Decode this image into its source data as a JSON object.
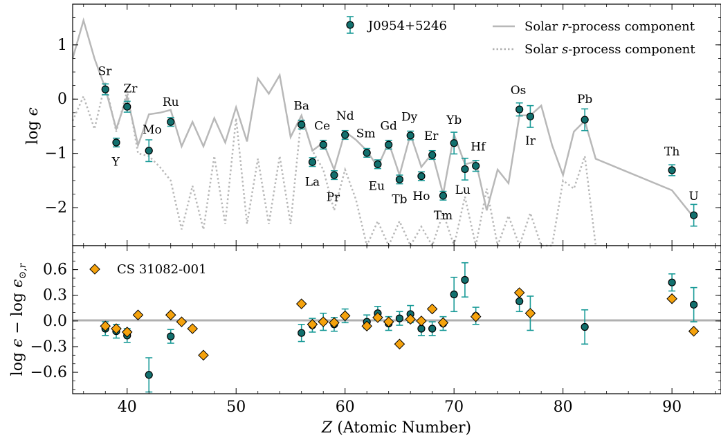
{
  "chart_data": [
    {
      "type": "scatter",
      "panel": "top",
      "ylabel": "log ε",
      "xlim": [
        35,
        94.5
      ],
      "ylim": [
        -2.7,
        1.75
      ],
      "yticks": [
        -2,
        -1,
        0,
        1
      ],
      "ytick_labels": [
        "−2",
        "−1",
        "0",
        "1"
      ],
      "legend": {
        "star": "J0954+5246",
        "r_line": "Solar r-process component",
        "s_line": "Solar s-process component"
      },
      "series": [
        {
          "name": "J0954+5246",
          "points": [
            {
              "el": "Sr",
              "z": 38,
              "y": 0.18,
              "err": 0.1
            },
            {
              "el": "Y",
              "z": 39,
              "y": -0.8,
              "err": 0.08
            },
            {
              "el": "Zr",
              "z": 40,
              "y": -0.14,
              "err": 0.1
            },
            {
              "el": "Mo",
              "z": 42,
              "y": -0.95,
              "err": 0.2
            },
            {
              "el": "Ru",
              "z": 44,
              "y": -0.42,
              "err": 0.08
            },
            {
              "el": "Ba",
              "z": 56,
              "y": -0.47,
              "err": 0.08
            },
            {
              "el": "La",
              "z": 57,
              "y": -1.16,
              "err": 0.08
            },
            {
              "el": "Ce",
              "z": 58,
              "y": -0.84,
              "err": 0.08
            },
            {
              "el": "Pr",
              "z": 59,
              "y": -1.4,
              "err": 0.08
            },
            {
              "el": "Nd",
              "z": 60,
              "y": -0.66,
              "err": 0.08
            },
            {
              "el": "Sm",
              "z": 62,
              "y": -0.99,
              "err": 0.08
            },
            {
              "el": "Eu",
              "z": 63,
              "y": -1.2,
              "err": 0.08
            },
            {
              "el": "Gd",
              "z": 64,
              "y": -0.84,
              "err": 0.08
            },
            {
              "el": "Tb",
              "z": 65,
              "y": -1.48,
              "err": 0.08
            },
            {
              "el": "Dy",
              "z": 66,
              "y": -0.67,
              "err": 0.08
            },
            {
              "el": "Ho",
              "z": 67,
              "y": -1.42,
              "err": 0.08
            },
            {
              "el": "Er",
              "z": 68,
              "y": -1.03,
              "err": 0.08
            },
            {
              "el": "Tm",
              "z": 69,
              "y": -1.78,
              "err": 0.08
            },
            {
              "el": "Yb",
              "z": 70,
              "y": -0.81,
              "err": 0.2
            },
            {
              "el": "Lu",
              "z": 71,
              "y": -1.29,
              "err": 0.2
            },
            {
              "el": "Hf",
              "z": 72,
              "y": -1.23,
              "err": 0.1
            },
            {
              "el": "Os",
              "z": 76,
              "y": -0.19,
              "err": 0.12
            },
            {
              "el": "Ir",
              "z": 77,
              "y": -0.32,
              "err": 0.2
            },
            {
              "el": "Pb",
              "z": 82,
              "y": -0.38,
              "err": 0.2
            },
            {
              "el": "Th",
              "z": 90,
              "y": -1.31,
              "err": 0.1
            },
            {
              "el": "U",
              "z": 92,
              "y": -2.14,
              "err": 0.2
            }
          ]
        },
        {
          "name": "Solar r-process component",
          "x": [
            35,
            36,
            37,
            38,
            39,
            40,
            41,
            42,
            43,
            44,
            45,
            46,
            47,
            48,
            49,
            50,
            51,
            52,
            53,
            54,
            55,
            56,
            57,
            58,
            59,
            60,
            61,
            62,
            63,
            64,
            65,
            66,
            67,
            68,
            69,
            70,
            71,
            72,
            73,
            74,
            75,
            76,
            77,
            78,
            79,
            80,
            81,
            82,
            83,
            90,
            92
          ],
          "y": [
            0.75,
            1.45,
            0.75,
            0.2,
            -0.55,
            0.05,
            -0.85,
            -0.28,
            -0.25,
            -0.2,
            -0.87,
            -0.42,
            -0.87,
            -0.35,
            -0.8,
            -0.15,
            -0.78,
            0.38,
            0.1,
            0.44,
            -0.7,
            -0.3,
            -0.95,
            -0.8,
            -1.3,
            -0.6,
            -0.75,
            -0.95,
            -1.25,
            -0.8,
            -1.4,
            -0.65,
            -1.25,
            -1.0,
            -1.75,
            -0.65,
            -1.2,
            -1.15,
            -2.05,
            -1.3,
            -1.55,
            -0.3,
            -0.3,
            -0.12,
            -0.85,
            -1.4,
            -0.6,
            -0.4,
            -1.1,
            -1.68,
            -2.18
          ]
        },
        {
          "name": "Solar s-process component",
          "x": [
            35,
            36,
            37,
            38,
            39,
            40,
            41,
            42,
            43,
            44,
            45,
            46,
            47,
            48,
            49,
            50,
            51,
            52,
            53,
            54,
            55,
            56,
            57,
            58,
            59,
            60,
            61,
            62,
            63,
            64,
            65,
            66,
            67,
            68,
            69,
            70,
            71,
            72,
            73,
            74,
            75,
            76,
            77,
            78,
            79,
            80,
            81,
            82,
            83
          ],
          "y": [
            -0.4,
            0.05,
            -0.55,
            0.3,
            -0.6,
            0.15,
            -1.0,
            -1.05,
            -1.25,
            -1.5,
            -2.4,
            -1.6,
            -2.4,
            -1.05,
            -2.3,
            -0.35,
            -2.3,
            -1.1,
            -2.3,
            -1.05,
            -2.3,
            -0.3,
            -0.95,
            -1.3,
            -2.05,
            -1.3,
            -1.85,
            -2.7,
            -2.25,
            -2.7,
            -2.25,
            -2.7,
            -2.35,
            -2.7,
            -2.1,
            -2.7,
            -1.8,
            -2.7,
            -1.65,
            -2.7,
            -2.15,
            -2.7,
            -2.1,
            -2.7,
            -2.7,
            -1.5,
            -1.65,
            -1.05,
            -2.7
          ]
        }
      ],
      "labels": [
        {
          "text": "Sr",
          "x": 37.95,
          "y": 0.52
        },
        {
          "text": "Y",
          "x": 38.95,
          "y": -1.15
        },
        {
          "text": "Zr",
          "x": 40.3,
          "y": 0.2
        },
        {
          "text": "Mo",
          "x": 42.3,
          "y": -0.56
        },
        {
          "text": "Ru",
          "x": 44.0,
          "y": -0.05
        },
        {
          "text": "Ba",
          "x": 56.0,
          "y": -0.12
        },
        {
          "text": "La",
          "x": 57.0,
          "y": -1.52
        },
        {
          "text": "Ce",
          "x": 57.9,
          "y": -0.49
        },
        {
          "text": "Pr",
          "x": 58.9,
          "y": -1.8
        },
        {
          "text": "Nd",
          "x": 60.0,
          "y": -0.3
        },
        {
          "text": "Sm",
          "x": 61.9,
          "y": -0.63
        },
        {
          "text": "Eu",
          "x": 62.9,
          "y": -1.6
        },
        {
          "text": "Gd",
          "x": 64.0,
          "y": -0.49
        },
        {
          "text": "Tb",
          "x": 65.0,
          "y": -1.84
        },
        {
          "text": "Dy",
          "x": 65.9,
          "y": -0.32
        },
        {
          "text": "Ho",
          "x": 67.0,
          "y": -1.78
        },
        {
          "text": "Er",
          "x": 67.9,
          "y": -0.67
        },
        {
          "text": "Tm",
          "x": 69.0,
          "y": -2.14
        },
        {
          "text": "Yb",
          "x": 70.0,
          "y": -0.38
        },
        {
          "text": "Lu",
          "x": 70.8,
          "y": -1.67
        },
        {
          "text": "Hf",
          "x": 72.2,
          "y": -0.87
        },
        {
          "text": "Os",
          "x": 75.9,
          "y": 0.17
        },
        {
          "text": "Ir",
          "x": 77.0,
          "y": -0.76
        },
        {
          "text": "Pb",
          "x": 82.0,
          "y": 0.0
        },
        {
          "text": "Th",
          "x": 90.0,
          "y": -0.96
        },
        {
          "text": "U",
          "x": 92.0,
          "y": -1.78
        }
      ]
    },
    {
      "type": "scatter",
      "panel": "bottom",
      "ylabel": "log ε − log ε⊙,r",
      "xlabel": "Z (Atomic Number)",
      "xlim": [
        35,
        94.5
      ],
      "ylim": [
        -0.85,
        0.88
      ],
      "yticks": [
        -0.6,
        -0.3,
        0.0,
        0.3,
        0.6
      ],
      "ytick_labels": [
        "−0.6",
        "−0.3",
        "0.0",
        "0.3",
        "0.6"
      ],
      "xticks": [
        40,
        50,
        60,
        70,
        80,
        90
      ],
      "legend": {
        "comparison": "CS 31082-001"
      },
      "series": [
        {
          "name": "J0954+5246",
          "points": [
            {
              "z": 38,
              "y": -0.09,
              "err": 0.08
            },
            {
              "z": 39,
              "y": -0.12,
              "err": 0.08
            },
            {
              "z": 40,
              "y": -0.17,
              "err": 0.08
            },
            {
              "z": 42,
              "y": -0.63,
              "err": 0.2
            },
            {
              "z": 44,
              "y": -0.18,
              "err": 0.08
            },
            {
              "z": 56,
              "y": -0.14,
              "err": 0.1
            },
            {
              "z": 57,
              "y": -0.05,
              "err": 0.08
            },
            {
              "z": 58,
              "y": -0.01,
              "err": 0.1
            },
            {
              "z": 59,
              "y": -0.04,
              "err": 0.08
            },
            {
              "z": 60,
              "y": 0.06,
              "err": 0.08
            },
            {
              "z": 62,
              "y": -0.01,
              "err": 0.08
            },
            {
              "z": 63,
              "y": 0.09,
              "err": 0.08
            },
            {
              "z": 64,
              "y": -0.03,
              "err": 0.08
            },
            {
              "z": 65,
              "y": 0.03,
              "err": 0.08
            },
            {
              "z": 66,
              "y": 0.08,
              "err": 0.1
            },
            {
              "z": 67,
              "y": -0.09,
              "err": 0.08
            },
            {
              "z": 68,
              "y": -0.09,
              "err": 0.08
            },
            {
              "z": 69,
              "y": -0.03,
              "err": 0.08
            },
            {
              "z": 70,
              "y": 0.31,
              "err": 0.2
            },
            {
              "z": 71,
              "y": 0.48,
              "err": 0.2
            },
            {
              "z": 72,
              "y": 0.06,
              "err": 0.1
            },
            {
              "z": 76,
              "y": 0.23,
              "err": 0.12
            },
            {
              "z": 77,
              "y": 0.09,
              "err": 0.2
            },
            {
              "z": 82,
              "y": -0.07,
              "err": 0.2
            },
            {
              "z": 90,
              "y": 0.45,
              "err": 0.1
            },
            {
              "z": 92,
              "y": 0.19,
              "err": 0.2
            }
          ]
        },
        {
          "name": "CS 31082-001",
          "points": [
            {
              "z": 38,
              "y": -0.06
            },
            {
              "z": 39,
              "y": -0.09
            },
            {
              "z": 40,
              "y": -0.13
            },
            {
              "z": 41,
              "y": 0.07
            },
            {
              "z": 44,
              "y": 0.07
            },
            {
              "z": 45,
              "y": -0.01
            },
            {
              "z": 46,
              "y": -0.09
            },
            {
              "z": 47,
              "y": -0.4
            },
            {
              "z": 56,
              "y": 0.2
            },
            {
              "z": 57,
              "y": -0.04
            },
            {
              "z": 58,
              "y": -0.01
            },
            {
              "z": 59,
              "y": -0.02
            },
            {
              "z": 60,
              "y": 0.06
            },
            {
              "z": 62,
              "y": -0.06
            },
            {
              "z": 63,
              "y": 0.04
            },
            {
              "z": 64,
              "y": -0.01
            },
            {
              "z": 65,
              "y": -0.27
            },
            {
              "z": 66,
              "y": 0.02
            },
            {
              "z": 67,
              "y": 0.0
            },
            {
              "z": 68,
              "y": 0.14
            },
            {
              "z": 69,
              "y": -0.02
            },
            {
              "z": 72,
              "y": 0.05
            },
            {
              "z": 76,
              "y": 0.33
            },
            {
              "z": 77,
              "y": 0.09
            },
            {
              "z": 90,
              "y": 0.26
            },
            {
              "z": 92,
              "y": -0.12
            }
          ]
        }
      ]
    }
  ],
  "colors": {
    "star_fill": "#12706e",
    "errbar": "#1a9b98",
    "comparison_fill": "#f5a20c",
    "solar_line": "#b8b8b8",
    "zero_line": "#b0b0b0"
  },
  "xlabel_z": "Z",
  "xlabel_rest": " (Atomic Number)"
}
